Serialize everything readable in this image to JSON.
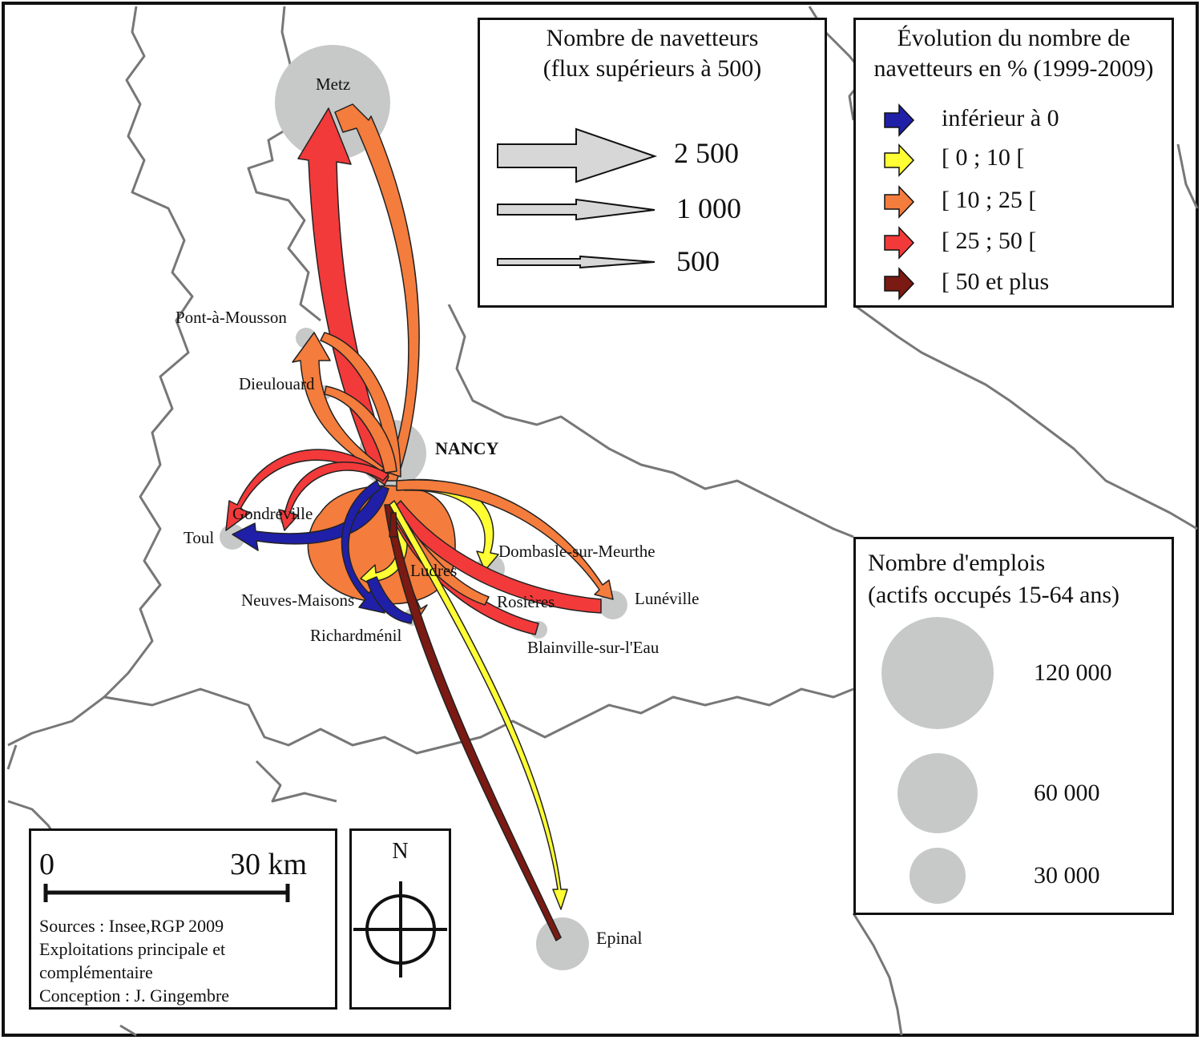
{
  "cities": {
    "metz": "Metz",
    "pont_a_mousson": "Pont-à-Mousson",
    "dieulouard": "Dieulouard",
    "nancy": "NANCY",
    "gondreville": "Gondreville",
    "toul": "Toul",
    "dombasle": "Dombasle-sur-Meurthe",
    "ludres": "Ludres",
    "luneville": "Lunéville",
    "neuves_maisons": "Neuves-Maisons",
    "rosieres": "Rosières",
    "richardmenil": "Richardménil",
    "blainville": "Blainville-sur-l'Eau",
    "epinal": "Epinal"
  },
  "legend_commuters": {
    "title_line1": "Nombre de navetteurs",
    "title_line2": "(flux supérieurs à 500)",
    "values": [
      "2 500",
      "1 000",
      "500"
    ]
  },
  "legend_evolution": {
    "title_line1": "Évolution du nombre de",
    "title_line2": "navetteurs en % (1999-2009)",
    "classes": [
      {
        "label": "inférieur à 0",
        "color": "#1f1fa8"
      },
      {
        "label": "[ 0 ; 10 [",
        "color": "#ffff33"
      },
      {
        "label": "[ 10 ; 25 [",
        "color": "#f47c3c"
      },
      {
        "label": "[ 25 ; 50 [",
        "color": "#f23a3a"
      },
      {
        "label": "[ 50 et plus",
        "color": "#7a1a12"
      }
    ]
  },
  "legend_jobs": {
    "title_line1": "Nombre d'emplois",
    "title_line2": "(actifs occupés 15-64 ans)",
    "values": [
      "120 000",
      "60 000",
      "30 000"
    ]
  },
  "scale": {
    "start_label": "0",
    "end_label": "30 km"
  },
  "credits": {
    "line1": "Sources : Insee,RGP 2009",
    "line2": "Exploitations principale et",
    "line3": "complémentaire",
    "line4": "Conception : J. Gingembre"
  },
  "north": {
    "label": "N"
  },
  "colors": {
    "boundary": "#777777",
    "circle": "#c7c9c8",
    "blue": "#1f1fa8",
    "yellow": "#ffff33",
    "orange": "#f47c3c",
    "red": "#f23a3a",
    "darkred": "#7a1a12"
  }
}
